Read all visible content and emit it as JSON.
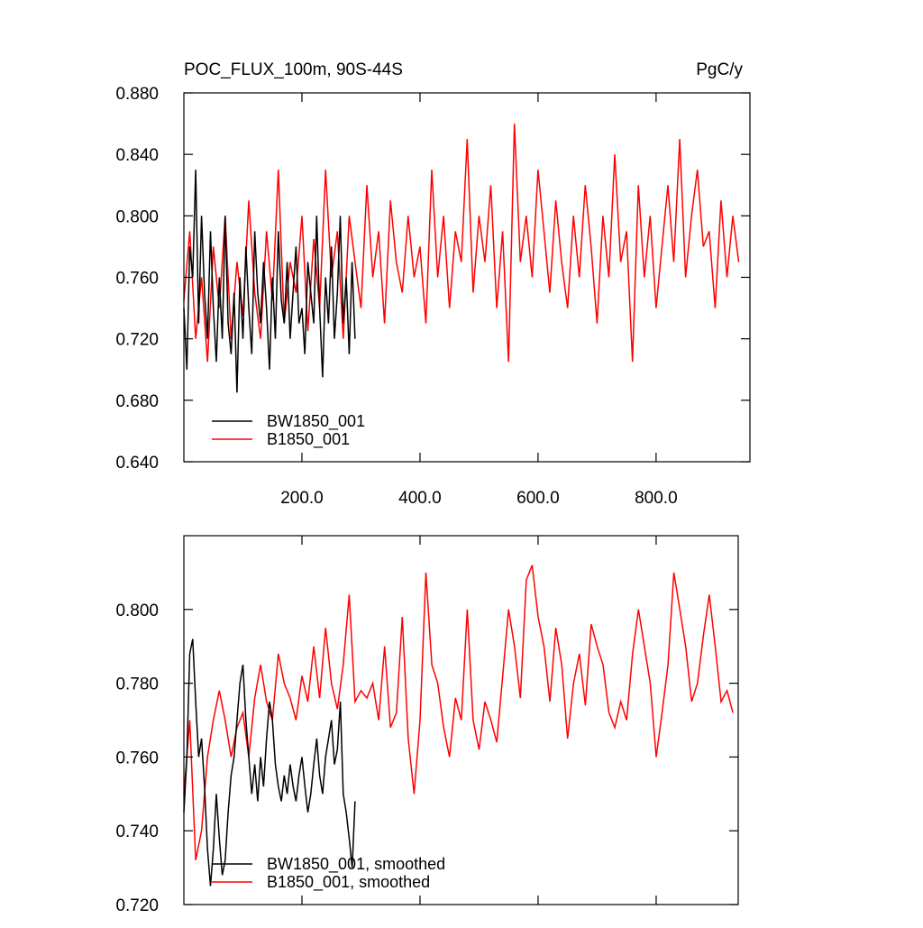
{
  "chart_data": [
    {
      "type": "line",
      "title": "POC_FLUX_100m, 90S-44S",
      "units": "PgC/y",
      "xlim": [
        0,
        959
      ],
      "xticks": [
        {
          "value": 200,
          "label": "200.0"
        },
        {
          "value": 400,
          "label": "400.0"
        },
        {
          "value": 600,
          "label": "600.0"
        },
        {
          "value": 800,
          "label": "800.0"
        }
      ],
      "ylim": [
        0.64,
        0.88
      ],
      "yticks": [
        {
          "value": 0.64,
          "label": "0.640"
        },
        {
          "value": 0.68,
          "label": "0.680"
        },
        {
          "value": 0.72,
          "label": "0.720"
        },
        {
          "value": 0.76,
          "label": "0.760"
        },
        {
          "value": 0.8,
          "label": "0.800"
        },
        {
          "value": 0.84,
          "label": "0.840"
        },
        {
          "value": 0.88,
          "label": "0.880"
        }
      ],
      "legend": "lower left",
      "series": [
        {
          "name": "B1850_001",
          "color": "#ff0000",
          "x": [
            0,
            10,
            20,
            30,
            40,
            50,
            60,
            70,
            80,
            90,
            100,
            110,
            120,
            130,
            140,
            150,
            160,
            170,
            180,
            190,
            200,
            210,
            220,
            230,
            240,
            250,
            260,
            270,
            280,
            290,
            300,
            310,
            320,
            330,
            340,
            350,
            360,
            370,
            380,
            390,
            400,
            410,
            420,
            430,
            440,
            450,
            460,
            470,
            480,
            490,
            500,
            510,
            520,
            530,
            540,
            550,
            560,
            570,
            580,
            590,
            600,
            610,
            620,
            630,
            640,
            650,
            660,
            670,
            680,
            690,
            700,
            710,
            720,
            730,
            740,
            750,
            760,
            770,
            780,
            790,
            800,
            810,
            820,
            830,
            840,
            850,
            860,
            870,
            880,
            890,
            900,
            910,
            920,
            930,
            940
          ],
          "values": [
            0.745,
            0.79,
            0.72,
            0.76,
            0.705,
            0.78,
            0.74,
            0.8,
            0.72,
            0.77,
            0.735,
            0.81,
            0.75,
            0.72,
            0.79,
            0.745,
            0.83,
            0.73,
            0.77,
            0.75,
            0.8,
            0.725,
            0.785,
            0.74,
            0.83,
            0.76,
            0.79,
            0.72,
            0.8,
            0.77,
            0.74,
            0.82,
            0.76,
            0.79,
            0.73,
            0.81,
            0.77,
            0.75,
            0.8,
            0.76,
            0.78,
            0.73,
            0.83,
            0.76,
            0.8,
            0.74,
            0.79,
            0.77,
            0.85,
            0.75,
            0.8,
            0.77,
            0.82,
            0.74,
            0.79,
            0.705,
            0.86,
            0.77,
            0.8,
            0.76,
            0.83,
            0.79,
            0.75,
            0.81,
            0.77,
            0.74,
            0.8,
            0.76,
            0.82,
            0.78,
            0.73,
            0.8,
            0.76,
            0.84,
            0.77,
            0.79,
            0.705,
            0.82,
            0.76,
            0.8,
            0.74,
            0.78,
            0.82,
            0.77,
            0.85,
            0.76,
            0.8,
            0.83,
            0.78,
            0.79,
            0.74,
            0.81,
            0.76,
            0.8,
            0.77
          ]
        },
        {
          "name": "BW1850_001",
          "color": "#000000",
          "x": [
            0,
            5,
            10,
            15,
            20,
            25,
            30,
            35,
            40,
            45,
            50,
            55,
            60,
            65,
            70,
            75,
            80,
            85,
            90,
            95,
            100,
            105,
            110,
            115,
            120,
            125,
            130,
            135,
            140,
            145,
            150,
            155,
            160,
            165,
            170,
            175,
            180,
            185,
            190,
            195,
            200,
            205,
            210,
            215,
            220,
            225,
            230,
            235,
            240,
            245,
            250,
            255,
            260,
            265,
            270,
            275,
            280,
            285,
            290
          ],
          "values": [
            0.74,
            0.7,
            0.78,
            0.76,
            0.83,
            0.73,
            0.8,
            0.75,
            0.72,
            0.79,
            0.74,
            0.705,
            0.76,
            0.72,
            0.8,
            0.73,
            0.71,
            0.75,
            0.685,
            0.76,
            0.72,
            0.78,
            0.74,
            0.71,
            0.79,
            0.75,
            0.73,
            0.77,
            0.74,
            0.7,
            0.76,
            0.72,
            0.79,
            0.745,
            0.73,
            0.77,
            0.72,
            0.75,
            0.78,
            0.73,
            0.74,
            0.71,
            0.77,
            0.75,
            0.73,
            0.8,
            0.74,
            0.695,
            0.76,
            0.73,
            0.78,
            0.72,
            0.75,
            0.8,
            0.73,
            0.76,
            0.71,
            0.77,
            0.72
          ]
        }
      ],
      "legend_order": [
        1,
        0
      ]
    },
    {
      "type": "line",
      "xlim": [
        0,
        939
      ],
      "xticks": [
        200,
        400,
        600,
        800
      ],
      "show_xtick_labels": false,
      "ylim": [
        0.72,
        0.82
      ],
      "yticks": [
        {
          "value": 0.72,
          "label": "0.720"
        },
        {
          "value": 0.74,
          "label": "0.740"
        },
        {
          "value": 0.76,
          "label": "0.760"
        },
        {
          "value": 0.78,
          "label": "0.780"
        },
        {
          "value": 0.8,
          "label": "0.800"
        }
      ],
      "legend": "lower left",
      "series": [
        {
          "name": "B1850_001, smoothed",
          "color": "#ff0000",
          "x": [
            0,
            10,
            20,
            30,
            40,
            50,
            60,
            70,
            80,
            90,
            100,
            110,
            120,
            130,
            140,
            150,
            160,
            170,
            180,
            190,
            200,
            210,
            220,
            230,
            240,
            250,
            260,
            270,
            280,
            290,
            300,
            310,
            320,
            330,
            340,
            350,
            360,
            370,
            380,
            390,
            400,
            410,
            420,
            430,
            440,
            450,
            460,
            470,
            480,
            490,
            500,
            510,
            520,
            530,
            540,
            550,
            560,
            570,
            580,
            590,
            600,
            610,
            620,
            630,
            640,
            650,
            660,
            670,
            680,
            690,
            700,
            710,
            720,
            730,
            740,
            750,
            760,
            770,
            780,
            790,
            800,
            810,
            820,
            830,
            840,
            850,
            860,
            870,
            880,
            890,
            900,
            910,
            920,
            930
          ],
          "values": [
            0.75,
            0.77,
            0.732,
            0.74,
            0.76,
            0.77,
            0.778,
            0.77,
            0.76,
            0.768,
            0.772,
            0.76,
            0.776,
            0.785,
            0.775,
            0.77,
            0.788,
            0.78,
            0.776,
            0.77,
            0.782,
            0.775,
            0.79,
            0.776,
            0.795,
            0.78,
            0.773,
            0.785,
            0.804,
            0.775,
            0.778,
            0.776,
            0.78,
            0.77,
            0.79,
            0.768,
            0.772,
            0.798,
            0.765,
            0.75,
            0.77,
            0.81,
            0.785,
            0.78,
            0.768,
            0.76,
            0.776,
            0.77,
            0.8,
            0.77,
            0.762,
            0.775,
            0.77,
            0.764,
            0.782,
            0.8,
            0.79,
            0.776,
            0.808,
            0.812,
            0.798,
            0.79,
            0.775,
            0.795,
            0.785,
            0.765,
            0.78,
            0.788,
            0.774,
            0.796,
            0.79,
            0.785,
            0.772,
            0.768,
            0.775,
            0.77,
            0.788,
            0.8,
            0.79,
            0.78,
            0.76,
            0.772,
            0.785,
            0.81,
            0.8,
            0.79,
            0.775,
            0.78,
            0.793,
            0.804,
            0.79,
            0.775,
            0.778,
            0.772
          ]
        },
        {
          "name": "BW1850_001, smoothed",
          "color": "#000000",
          "x": [
            0,
            5,
            10,
            15,
            20,
            25,
            30,
            35,
            40,
            45,
            50,
            55,
            60,
            65,
            70,
            75,
            80,
            85,
            90,
            95,
            100,
            105,
            110,
            115,
            120,
            125,
            130,
            135,
            140,
            145,
            150,
            155,
            160,
            165,
            170,
            175,
            180,
            185,
            190,
            195,
            200,
            205,
            210,
            215,
            220,
            225,
            230,
            235,
            240,
            245,
            250,
            255,
            260,
            265,
            270,
            275,
            280,
            285,
            290
          ],
          "values": [
            0.745,
            0.76,
            0.788,
            0.792,
            0.775,
            0.76,
            0.765,
            0.752,
            0.735,
            0.725,
            0.735,
            0.75,
            0.738,
            0.728,
            0.732,
            0.745,
            0.755,
            0.76,
            0.77,
            0.78,
            0.785,
            0.77,
            0.76,
            0.75,
            0.758,
            0.748,
            0.76,
            0.752,
            0.765,
            0.775,
            0.77,
            0.758,
            0.752,
            0.748,
            0.755,
            0.75,
            0.758,
            0.752,
            0.748,
            0.755,
            0.76,
            0.752,
            0.745,
            0.75,
            0.758,
            0.765,
            0.755,
            0.75,
            0.76,
            0.765,
            0.77,
            0.758,
            0.762,
            0.775,
            0.75,
            0.745,
            0.738,
            0.73,
            0.748
          ]
        }
      ],
      "legend_order": [
        1,
        0
      ]
    }
  ]
}
